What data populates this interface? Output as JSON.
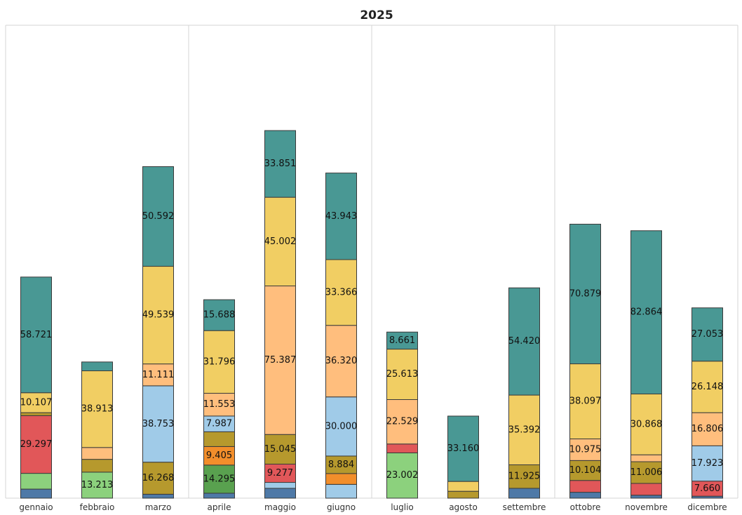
{
  "chart_data": {
    "type": "bar",
    "stacked": true,
    "title": "2025",
    "xlabel": "",
    "ylabel": "",
    "ylim": [
      0,
      240000
    ],
    "grid": false,
    "categories": [
      "gennaio",
      "febbraio",
      "marzo",
      "aprile",
      "maggio",
      "giugno",
      "luglio",
      "agosto",
      "settembre",
      "ottobre",
      "novembre",
      "dicembre"
    ],
    "quarter_separators_after": [
      2,
      5,
      8
    ],
    "series": [
      {
        "key": "s1",
        "color": "#4e79a7",
        "values": [
          4600,
          0,
          2000,
          2500,
          5000,
          0,
          0,
          0,
          5000,
          3000,
          1500,
          1000
        ]
      },
      {
        "key": "s2",
        "color": "#a0cbe8",
        "values": [
          0,
          0,
          0,
          0,
          3000,
          7000,
          0,
          0,
          0,
          0,
          0,
          0
        ]
      },
      {
        "key": "s3",
        "color": "#59a14f",
        "values": [
          0,
          0,
          0,
          14295,
          0,
          0,
          0,
          0,
          0,
          0,
          0,
          0
        ]
      },
      {
        "key": "s4",
        "color": "#8cd17d",
        "values": [
          8000,
          13213,
          0,
          0,
          0,
          0,
          23002,
          0,
          0,
          0,
          0,
          0
        ]
      },
      {
        "key": "s5",
        "color": "#e15759",
        "values": [
          29297,
          0,
          0,
          0,
          9277,
          0,
          4500,
          0,
          0,
          6000,
          6000,
          7660
        ]
      },
      {
        "key": "s6",
        "color": "#f28e2b",
        "values": [
          0,
          0,
          0,
          9405,
          0,
          5500,
          0,
          0,
          0,
          0,
          0,
          0
        ]
      },
      {
        "key": "s7",
        "color": "#b6992d",
        "values": [
          1500,
          6500,
          16268,
          7500,
          15045,
          8884,
          0,
          3500,
          11925,
          10104,
          11006,
          0
        ]
      },
      {
        "key": "s8",
        "color": "#a0cbe8",
        "values": [
          0,
          0,
          38753,
          7987,
          0,
          30000,
          0,
          0,
          0,
          0,
          0,
          17923
        ]
      },
      {
        "key": "s9",
        "color": "#ffbe7d",
        "values": [
          0,
          6000,
          11111,
          11553,
          75387,
          36320,
          22529,
          0,
          0,
          10975,
          3500,
          16806
        ]
      },
      {
        "key": "s10",
        "color": "#f1ce63",
        "values": [
          10107,
          38913,
          49539,
          31796,
          45002,
          33366,
          25613,
          5000,
          35392,
          38097,
          30868,
          26148
        ]
      },
      {
        "key": "s11",
        "color": "#499894",
        "values": [
          58721,
          4500,
          50592,
          15688,
          33851,
          43943,
          8661,
          33160,
          54420,
          70879,
          82864,
          27053
        ]
      }
    ],
    "data_labels": [
      {
        "category": "gennaio",
        "series": "s11",
        "text": "58.721"
      },
      {
        "category": "gennaio",
        "series": "s10",
        "text": "10.107"
      },
      {
        "category": "gennaio",
        "series": "s5",
        "text": "29.297"
      },
      {
        "category": "febbraio",
        "series": "s10",
        "text": "38.913"
      },
      {
        "category": "febbraio",
        "series": "s4",
        "text": "13.213"
      },
      {
        "category": "marzo",
        "series": "s11",
        "text": "50.592"
      },
      {
        "category": "marzo",
        "series": "s10",
        "text": "49.539"
      },
      {
        "category": "marzo",
        "series": "s9",
        "text": "11.111"
      },
      {
        "category": "marzo",
        "series": "s8",
        "text": "38.753"
      },
      {
        "category": "marzo",
        "series": "s7",
        "text": "16.268"
      },
      {
        "category": "aprile",
        "series": "s11",
        "text": "15.688"
      },
      {
        "category": "aprile",
        "series": "s10",
        "text": "31.796"
      },
      {
        "category": "aprile",
        "series": "s9",
        "text": "11.553"
      },
      {
        "category": "aprile",
        "series": "s8",
        "text": "7.987"
      },
      {
        "category": "aprile",
        "series": "s6",
        "text": "9.405"
      },
      {
        "category": "aprile",
        "series": "s3",
        "text": "14.295"
      },
      {
        "category": "maggio",
        "series": "s11",
        "text": "33.851"
      },
      {
        "category": "maggio",
        "series": "s10",
        "text": "45.002"
      },
      {
        "category": "maggio",
        "series": "s9",
        "text": "75.387"
      },
      {
        "category": "maggio",
        "series": "s7",
        "text": "15.045"
      },
      {
        "category": "maggio",
        "series": "s5",
        "text": "9.277"
      },
      {
        "category": "giugno",
        "series": "s11",
        "text": "43.943"
      },
      {
        "category": "giugno",
        "series": "s10",
        "text": "33.366"
      },
      {
        "category": "giugno",
        "series": "s9",
        "text": "36.320"
      },
      {
        "category": "giugno",
        "series": "s8",
        "text": "30.000"
      },
      {
        "category": "giugno",
        "series": "s7",
        "text": "8.884"
      },
      {
        "category": "luglio",
        "series": "s11",
        "text": "8.661"
      },
      {
        "category": "luglio",
        "series": "s10",
        "text": "25.613"
      },
      {
        "category": "luglio",
        "series": "s9",
        "text": "22.529"
      },
      {
        "category": "luglio",
        "series": "s4",
        "text": "23.002"
      },
      {
        "category": "agosto",
        "series": "s11",
        "text": "33.160"
      },
      {
        "category": "settembre",
        "series": "s11",
        "text": "54.420"
      },
      {
        "category": "settembre",
        "series": "s10",
        "text": "35.392"
      },
      {
        "category": "settembre",
        "series": "s7",
        "text": "11.925"
      },
      {
        "category": "ottobre",
        "series": "s11",
        "text": "70.879"
      },
      {
        "category": "ottobre",
        "series": "s10",
        "text": "38.097"
      },
      {
        "category": "ottobre",
        "series": "s9",
        "text": "10.975"
      },
      {
        "category": "ottobre",
        "series": "s7",
        "text": "10.104"
      },
      {
        "category": "novembre",
        "series": "s11",
        "text": "82.864"
      },
      {
        "category": "novembre",
        "series": "s10",
        "text": "30.868"
      },
      {
        "category": "novembre",
        "series": "s7",
        "text": "11.006"
      },
      {
        "category": "dicembre",
        "series": "s11",
        "text": "27.053"
      },
      {
        "category": "dicembre",
        "series": "s10",
        "text": "26.148"
      },
      {
        "category": "dicembre",
        "series": "s9",
        "text": "16.806"
      },
      {
        "category": "dicembre",
        "series": "s8",
        "text": "17.923"
      },
      {
        "category": "dicembre",
        "series": "s5",
        "text": "7.660"
      }
    ]
  }
}
